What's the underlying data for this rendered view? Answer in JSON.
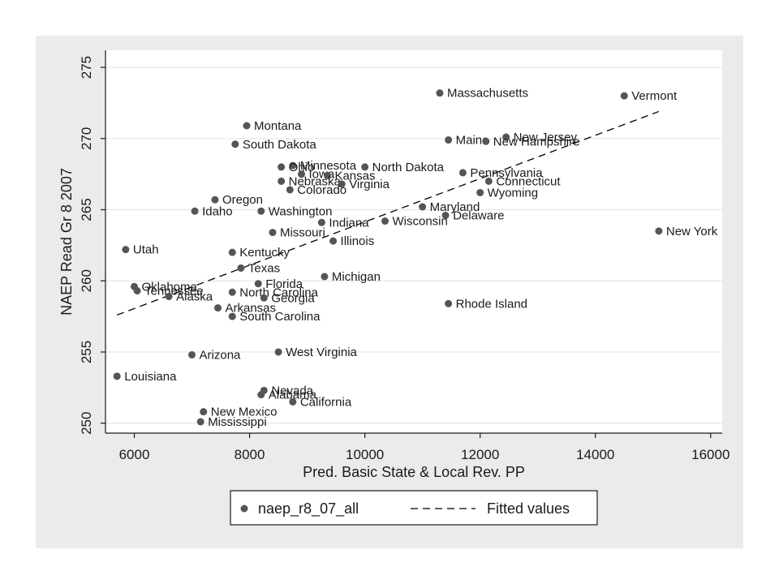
{
  "chart_data": {
    "type": "scatter",
    "xlabel": "Pred. Basic State & Local Rev. PP",
    "ylabel": "NAEP Read Gr 8 2007",
    "xlim": [
      5500,
      16200
    ],
    "ylim": [
      249.3,
      276.2
    ],
    "x_ticks": [
      6000,
      8000,
      10000,
      12000,
      14000,
      16000
    ],
    "y_ticks": [
      250,
      255,
      260,
      265,
      270,
      275
    ],
    "grid": true,
    "legend_position": "bottom",
    "colors": {
      "points": "#555555",
      "fit_line": "#000000",
      "grid": "#ffffff",
      "plot_bg": "#ffffff",
      "outer_bg": "#ebebeb"
    },
    "series": [
      {
        "name": "naep_r8_07_all",
        "marker": "circle",
        "points": [
          {
            "label": "Massachusetts",
            "x": 11300,
            "y": 273.2
          },
          {
            "label": "Vermont",
            "x": 14500,
            "y": 273.0
          },
          {
            "label": "Montana",
            "x": 7950,
            "y": 270.9
          },
          {
            "label": "South Dakota",
            "x": 7750,
            "y": 269.6
          },
          {
            "label": "Maine",
            "x": 11450,
            "y": 269.9
          },
          {
            "label": "New Jersey",
            "x": 12450,
            "y": 270.1
          },
          {
            "label": "New Hampshire",
            "x": 12100,
            "y": 269.8
          },
          {
            "label": "Minnesota",
            "x": 8750,
            "y": 268.1
          },
          {
            "label": "Ohio",
            "x": 8550,
            "y": 268.0
          },
          {
            "label": "North Dakota",
            "x": 10000,
            "y": 268.0
          },
          {
            "label": "Iowa",
            "x": 8900,
            "y": 267.5
          },
          {
            "label": "Kansas",
            "x": 9350,
            "y": 267.4
          },
          {
            "label": "Pennsylvania",
            "x": 11700,
            "y": 267.6
          },
          {
            "label": "Nebraska",
            "x": 8550,
            "y": 267.0
          },
          {
            "label": "Virginia",
            "x": 9600,
            "y": 266.8
          },
          {
            "label": "Connecticut",
            "x": 12150,
            "y": 267.0
          },
          {
            "label": "Colorado",
            "x": 8700,
            "y": 266.4
          },
          {
            "label": "Wyoming",
            "x": 12000,
            "y": 266.2
          },
          {
            "label": "Oregon",
            "x": 7400,
            "y": 265.7
          },
          {
            "label": "Idaho",
            "x": 7050,
            "y": 264.9
          },
          {
            "label": "Washington",
            "x": 8200,
            "y": 264.9
          },
          {
            "label": "Maryland",
            "x": 11000,
            "y": 265.2
          },
          {
            "label": "Delaware",
            "x": 11400,
            "y": 264.6
          },
          {
            "label": "Indiana",
            "x": 9250,
            "y": 264.1
          },
          {
            "label": "Wisconsin",
            "x": 10350,
            "y": 264.2
          },
          {
            "label": "Missouri",
            "x": 8400,
            "y": 263.4
          },
          {
            "label": "New York",
            "x": 15100,
            "y": 263.5
          },
          {
            "label": "Illinois",
            "x": 9450,
            "y": 262.8
          },
          {
            "label": "Utah",
            "x": 5850,
            "y": 262.2
          },
          {
            "label": "Kentucky",
            "x": 7700,
            "y": 262.0
          },
          {
            "label": "Texas",
            "x": 7850,
            "y": 260.9
          },
          {
            "label": "Michigan",
            "x": 9300,
            "y": 260.3
          },
          {
            "label": "Florida",
            "x": 8150,
            "y": 259.8
          },
          {
            "label": "Oklahoma",
            "x": 6000,
            "y": 259.6
          },
          {
            "label": "Tennessee",
            "x": 6050,
            "y": 259.3
          },
          {
            "label": "North Carolina",
            "x": 7700,
            "y": 259.2
          },
          {
            "label": "Alaska",
            "x": 6600,
            "y": 258.9
          },
          {
            "label": "Georgia",
            "x": 8250,
            "y": 258.8
          },
          {
            "label": "Rhode Island",
            "x": 11450,
            "y": 258.4
          },
          {
            "label": "Arkansas",
            "x": 7450,
            "y": 258.1
          },
          {
            "label": "South Carolina",
            "x": 7700,
            "y": 257.5
          },
          {
            "label": "West Virginia",
            "x": 8500,
            "y": 255.0
          },
          {
            "label": "Arizona",
            "x": 7000,
            "y": 254.8
          },
          {
            "label": "Louisiana",
            "x": 5700,
            "y": 253.3
          },
          {
            "label": "Nevada",
            "x": 8250,
            "y": 252.3
          },
          {
            "label": "Alabama",
            "x": 8200,
            "y": 252.0
          },
          {
            "label": "California",
            "x": 8750,
            "y": 251.5
          },
          {
            "label": "New Mexico",
            "x": 7200,
            "y": 250.8
          },
          {
            "label": "Mississippi",
            "x": 7150,
            "y": 250.1
          }
        ]
      },
      {
        "name": "Fitted values",
        "type": "line",
        "style": "dashed",
        "points": [
          {
            "x": 5700,
            "y": 257.6
          },
          {
            "x": 15100,
            "y": 271.9
          }
        ]
      }
    ]
  }
}
